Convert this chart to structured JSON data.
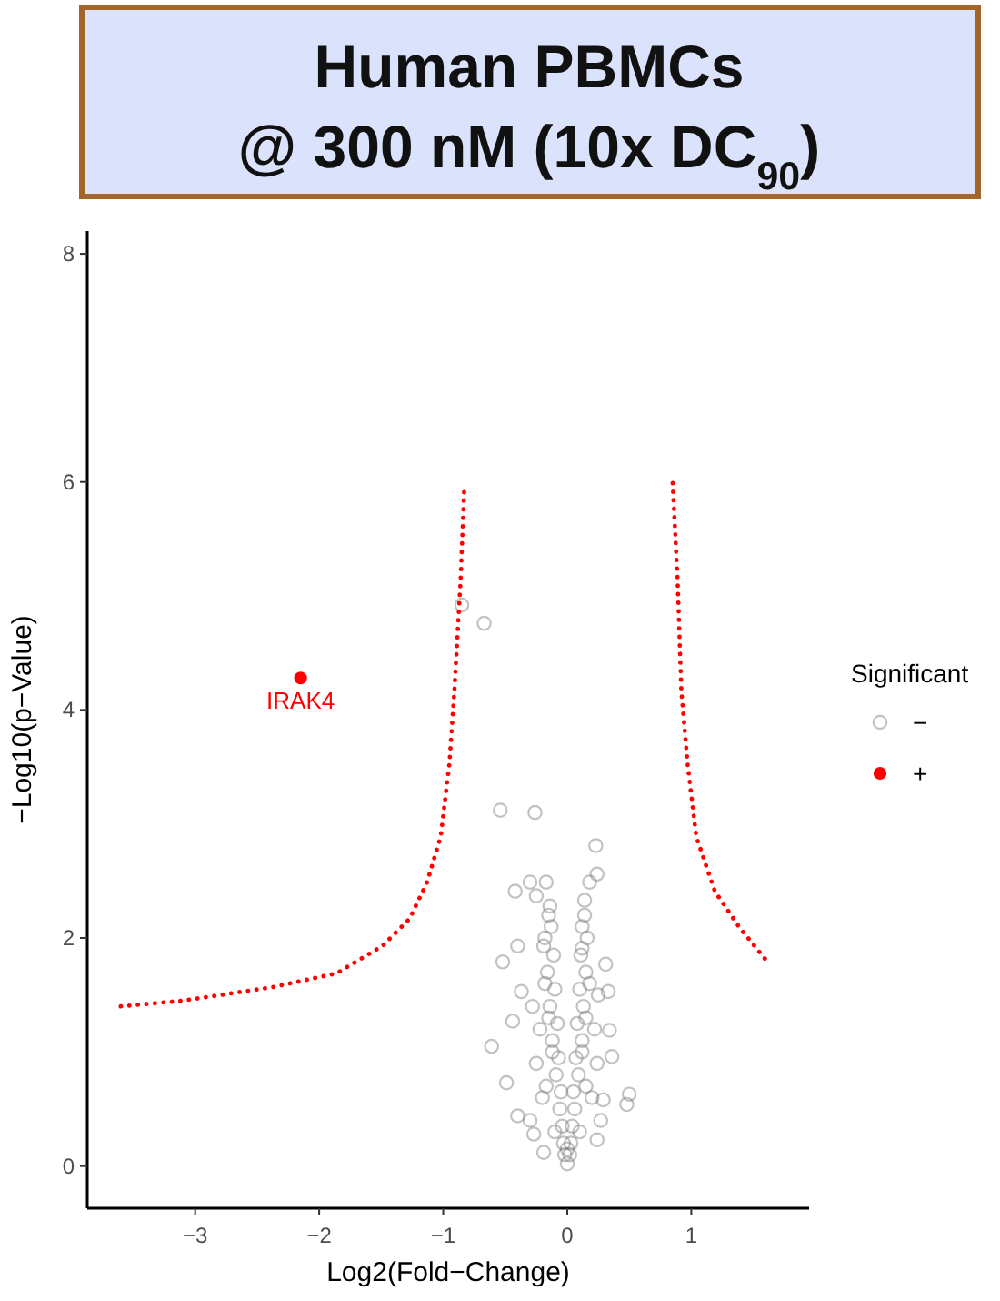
{
  "chart_data": {
    "type": "scatter",
    "title": "Human PBMCs\n@ 300 nM (10x DC$_{90}$)",
    "xlabel": "Log2(Fold−Change)",
    "ylabel": "−Log10(p−Value)",
    "legend_title": "Significant",
    "xlim": [
      -3.87,
      1.95
    ],
    "ylim": [
      -0.37,
      8.2
    ],
    "xticks": [
      {
        "value": -3,
        "label": "−3"
      },
      {
        "value": -2,
        "label": "−2"
      },
      {
        "value": -1,
        "label": "−1"
      },
      0,
      1
    ],
    "yticks": [
      0,
      2,
      4,
      6,
      8
    ],
    "grid": false,
    "legend": "right",
    "annotations": [
      {
        "text": "IRAK4",
        "x": -2.15,
        "y": 4.28
      }
    ],
    "series": [
      {
        "name": "−",
        "marker": "circle",
        "color": "#777777",
        "x": [
          -0.85,
          -0.67,
          -0.54,
          -0.26,
          0.23,
          0.24,
          -0.42,
          -0.3,
          -0.17,
          -0.25,
          0.18,
          -0.14,
          0.14,
          -0.52,
          -0.4,
          -0.19,
          0.31,
          0.12,
          -0.37,
          0.33,
          -0.61,
          -0.44,
          0.36,
          0.34,
          -0.49,
          -0.4,
          -0.27,
          0.5,
          0.48,
          0.29,
          0.24,
          -0.19,
          0,
          -0.03,
          0.03,
          -0.06,
          0.06,
          -0.09,
          0.09,
          -0.12,
          0.12,
          -0.14,
          0.13,
          -0.16,
          0.15,
          -0.18,
          0.16,
          -0.2,
          0.2,
          -0.25,
          0.24,
          -0.3,
          0.27,
          -0.22,
          0.22,
          -0.1,
          0.1,
          0,
          -0.28,
          0.25,
          -0.02,
          0.02,
          -0.04,
          0.04,
          -0.05,
          0.05,
          -0.07,
          0.07,
          -0.08,
          0.08,
          -0.1,
          0.1,
          -0.11,
          0.11,
          -0.13,
          0.12,
          -0.15,
          0.14,
          -0.17,
          0.15,
          -0.12,
          0.12,
          -0.15,
          0.15,
          -0.18,
          0.18
        ],
        "values": [
          4.92,
          4.76,
          3.12,
          3.1,
          2.81,
          2.56,
          2.41,
          2.49,
          2.49,
          2.37,
          2.49,
          2.28,
          2.33,
          1.79,
          1.93,
          1.93,
          1.77,
          1.91,
          1.53,
          1.53,
          1.05,
          1.27,
          0.96,
          1.19,
          0.73,
          0.44,
          0.28,
          0.63,
          0.54,
          0.58,
          0.23,
          0.12,
          0.02,
          0.2,
          0.2,
          0.5,
          0.5,
          0.8,
          0.8,
          1.1,
          1.1,
          1.4,
          1.4,
          1.7,
          1.7,
          2.0,
          2.0,
          0.6,
          0.6,
          0.9,
          0.9,
          0.4,
          0.4,
          1.2,
          1.2,
          0.3,
          0.3,
          0.15,
          1.4,
          1.5,
          0.1,
          0.1,
          0.35,
          0.35,
          0.65,
          0.65,
          0.95,
          0.95,
          1.25,
          1.25,
          1.55,
          1.55,
          1.85,
          1.85,
          2.1,
          2.1,
          2.2,
          2.2,
          0.7,
          0.7,
          1.0,
          1.0,
          1.3,
          1.3,
          1.6,
          1.6
        ]
      },
      {
        "name": "+",
        "marker": "circle",
        "color": "#ff0000",
        "x": [
          -2.15
        ],
        "values": [
          4.28
        ]
      },
      {
        "type": "line",
        "color": "#ff0000",
        "line_style": "dotted",
        "x": [
          -3.6,
          -3.1,
          -2.37,
          -1.86,
          -1.49,
          -1.27,
          -1.13,
          -1.02,
          -0.95,
          -0.91,
          -0.86,
          -0.83
        ],
        "values": [
          1.4,
          1.45,
          1.57,
          1.69,
          1.93,
          2.17,
          2.49,
          2.89,
          3.53,
          4.17,
          5.13,
          5.96
        ]
      },
      {
        "type": "line",
        "color": "#ff0000",
        "line_style": "dotted",
        "x": [
          0.85,
          0.89,
          0.92,
          0.97,
          1.04,
          1.19,
          1.39,
          1.63
        ],
        "values": [
          5.99,
          5.13,
          4.17,
          3.53,
          2.89,
          2.41,
          2.09,
          1.77
        ]
      }
    ]
  }
}
